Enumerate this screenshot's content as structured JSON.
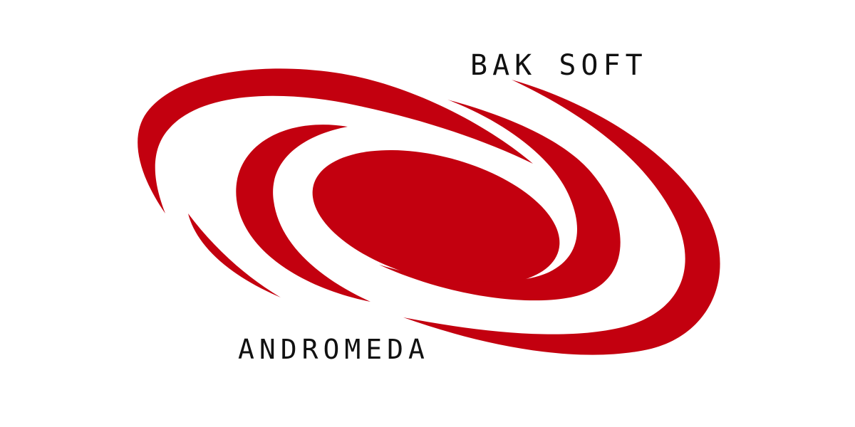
{
  "logo": {
    "company": "BAK SOFT",
    "product": "ANDROMEDA",
    "icon": "galaxy-swirl-icon",
    "colors": {
      "brand_red": "#c3000f",
      "text": "#111111",
      "background": "#ffffff"
    }
  }
}
